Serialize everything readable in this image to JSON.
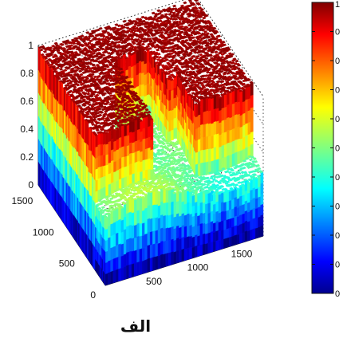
{
  "caption": "الف",
  "chart_data": {
    "type": "surface3d",
    "title": "",
    "xlabel": "",
    "ylabel": "",
    "zlabel": "",
    "colormap": "jet",
    "grid": true,
    "x_axis": {
      "range": [
        0,
        1800
      ],
      "ticks": [
        "500",
        "1000",
        "1500"
      ]
    },
    "y_axis": {
      "range": [
        0,
        1600
      ],
      "ticks": [
        "0",
        "500",
        "1000",
        "1500"
      ]
    },
    "z_axis": {
      "range": [
        0,
        1
      ],
      "ticks": [
        "0",
        "0.2",
        "0.4",
        "0.6",
        "0.8",
        "1"
      ]
    },
    "colorbar": {
      "range": [
        0,
        1
      ],
      "tick_labels": [
        "1",
        "0",
        "0",
        "0",
        "0",
        "0",
        "0",
        "0",
        "0",
        "0",
        "0"
      ]
    }
  }
}
